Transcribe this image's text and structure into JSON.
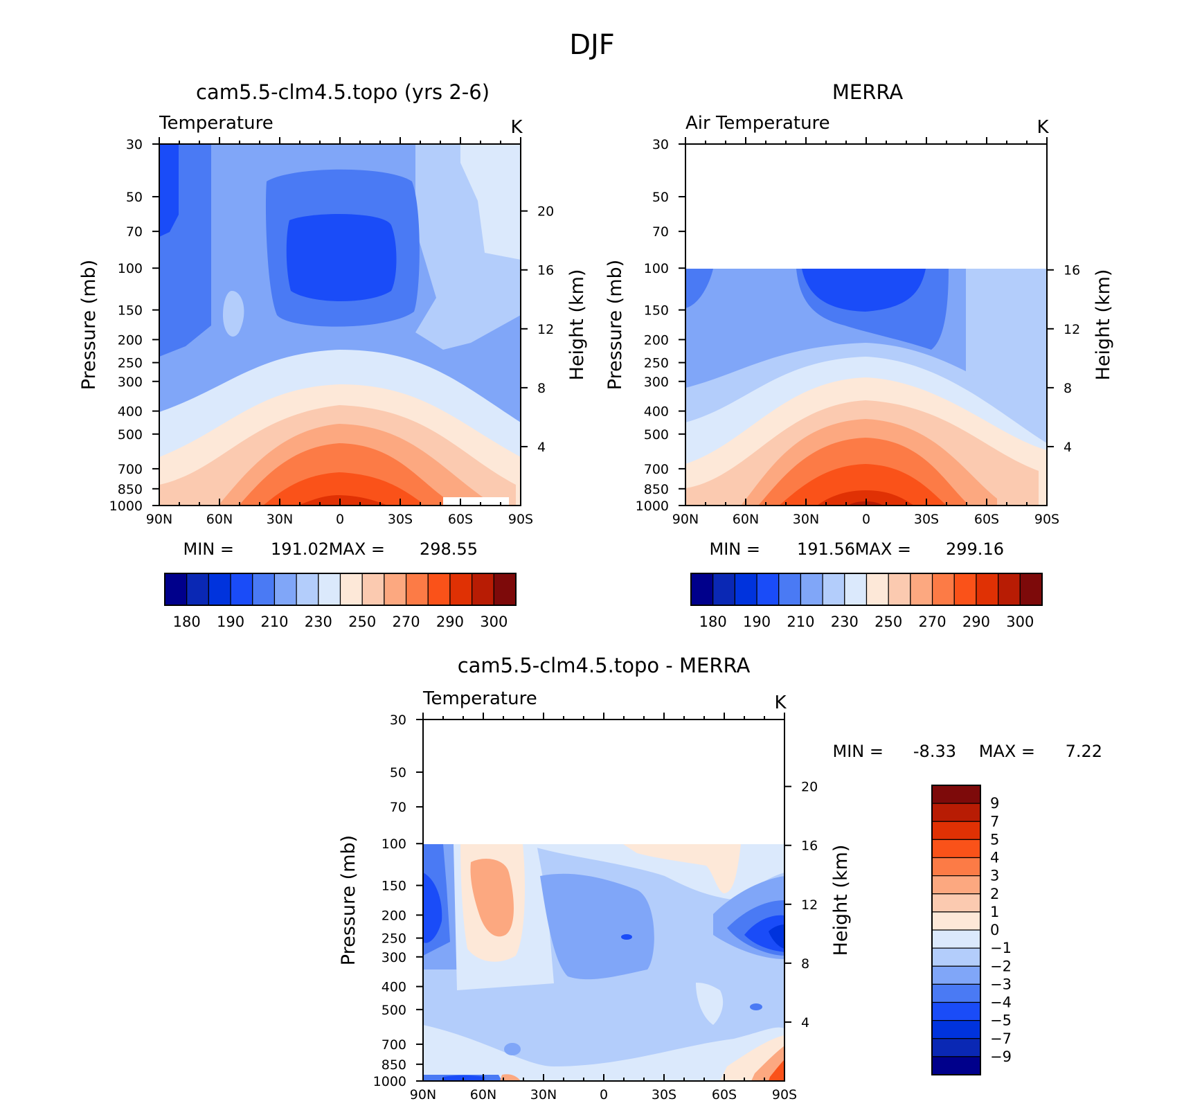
{
  "figure": {
    "title": "DJF"
  },
  "chart_data": [
    {
      "type": "contour",
      "title": "cam5.5-clm4.5.topo (yrs 2-6)",
      "variable": "Temperature",
      "units": "K",
      "xlabel": "",
      "ylabel": "Pressure (mb)",
      "y2label": "Height (km)",
      "x_ticks": [
        "90N",
        "60N",
        "30N",
        "0",
        "30S",
        "60S",
        "90S"
      ],
      "y_ticks": [
        "30",
        "50",
        "70",
        "100",
        "150",
        "200",
        "250",
        "300",
        "400",
        "500",
        "700",
        "850",
        "1000"
      ],
      "height_ticks": [
        "20",
        "16",
        "12",
        "8",
        "4"
      ],
      "data_top_pressure": 30,
      "min_label": "MIN =",
      "min": "191.02",
      "max_label": "MAX =",
      "max": "298.55",
      "colorbar": {
        "orientation": "horizontal",
        "labels": [
          "180",
          "190",
          "210",
          "230",
          "250",
          "270",
          "290",
          "300"
        ],
        "colors": [
          "#00008b",
          "#0a28b4",
          "#0033dd",
          "#1a4cf8",
          "#4a7af4",
          "#80a6f8",
          "#b3cdfb",
          "#dbe9fc",
          "#fde8d8",
          "#fbcab0",
          "#fca880",
          "#fc7b46",
          "#fa5219",
          "#e03104",
          "#b81c04",
          "#7d0a0a"
        ]
      }
    },
    {
      "type": "contour",
      "title": "MERRA",
      "variable": "Air Temperature",
      "units": "K",
      "xlabel": "",
      "ylabel": "Pressure (mb)",
      "y2label": "Height (km)",
      "x_ticks": [
        "90N",
        "60N",
        "30N",
        "0",
        "30S",
        "60S",
        "90S"
      ],
      "y_ticks": [
        "30",
        "50",
        "70",
        "100",
        "150",
        "200",
        "250",
        "300",
        "400",
        "500",
        "700",
        "850",
        "1000"
      ],
      "height_ticks": [
        "16",
        "12",
        "8",
        "4"
      ],
      "data_top_pressure": 100,
      "min_label": "MIN =",
      "min": "191.56",
      "max_label": "MAX =",
      "max": "299.16",
      "colorbar": {
        "orientation": "horizontal",
        "labels": [
          "180",
          "190",
          "210",
          "230",
          "250",
          "270",
          "290",
          "300"
        ],
        "colors": [
          "#00008b",
          "#0a28b4",
          "#0033dd",
          "#1a4cf8",
          "#4a7af4",
          "#80a6f8",
          "#b3cdfb",
          "#dbe9fc",
          "#fde8d8",
          "#fbcab0",
          "#fca880",
          "#fc7b46",
          "#fa5219",
          "#e03104",
          "#b81c04",
          "#7d0a0a"
        ]
      }
    },
    {
      "type": "contour",
      "title": "cam5.5-clm4.5.topo - MERRA",
      "variable": "Temperature",
      "units": "K",
      "xlabel": "",
      "ylabel": "Pressure (mb)",
      "y2label": "Height (km)",
      "x_ticks": [
        "90N",
        "60N",
        "30N",
        "0",
        "30S",
        "60S",
        "90S"
      ],
      "y_ticks": [
        "30",
        "50",
        "70",
        "100",
        "150",
        "200",
        "250",
        "300",
        "400",
        "500",
        "700",
        "850",
        "1000"
      ],
      "height_ticks": [
        "20",
        "16",
        "12",
        "8",
        "4"
      ],
      "data_top_pressure": 100,
      "min_label": "MIN =",
      "min": "-8.33",
      "max_label": "MAX =",
      "max": "7.22",
      "colorbar": {
        "orientation": "vertical",
        "labels": [
          "9",
          "7",
          "5",
          "4",
          "3",
          "2",
          "1",
          "0",
          "-1",
          "-2",
          "-3",
          "-4",
          "-5",
          "-7",
          "-9"
        ],
        "colors": [
          "#7d0a0a",
          "#b81c04",
          "#e03104",
          "#fa5219",
          "#fc7b46",
          "#fca880",
          "#fbcab0",
          "#fde8d8",
          "#dbe9fc",
          "#b3cdfb",
          "#80a6f8",
          "#4a7af4",
          "#1a4cf8",
          "#0033dd",
          "#0a28b4",
          "#00008b"
        ]
      }
    }
  ]
}
